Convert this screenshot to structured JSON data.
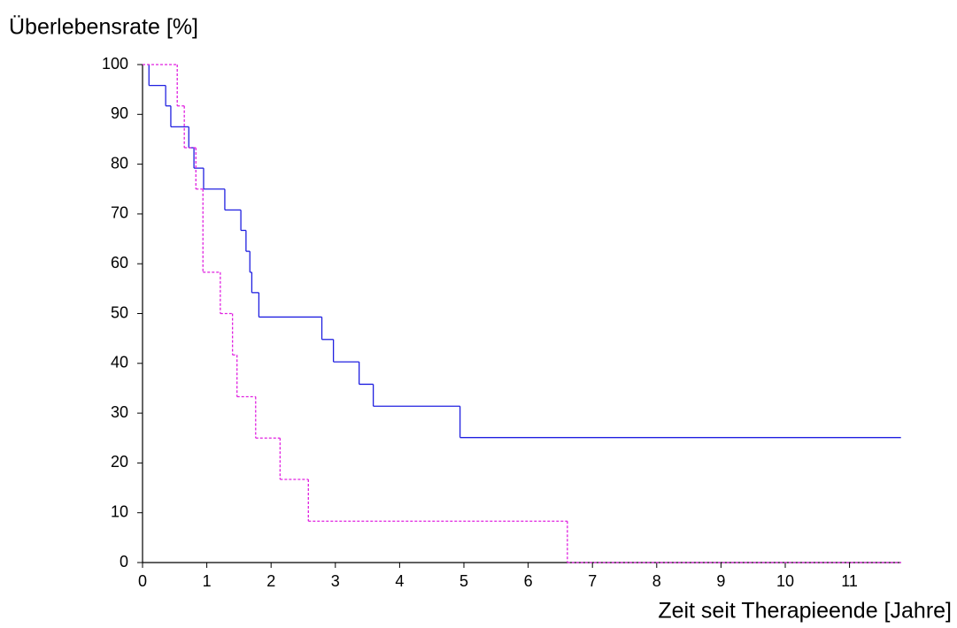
{
  "chart_data": {
    "type": "step",
    "y_label": "Überlebensrate [%]",
    "x_label": "Zeit seit Therapieende [Jahre]",
    "xlim": [
      0,
      11.8
    ],
    "ylim": [
      0,
      100
    ],
    "xticks": [
      0,
      1,
      2,
      3,
      4,
      5,
      6,
      7,
      8,
      9,
      10,
      11
    ],
    "yticks": [
      0,
      10,
      20,
      30,
      40,
      50,
      60,
      70,
      80,
      90,
      100
    ],
    "series": [
      {
        "color": "#2020e0",
        "dash": false,
        "x": [
          0.1,
          0.1,
          0.36,
          0.44,
          0.72,
          0.8,
          0.95,
          1.28,
          1.53,
          1.61,
          1.67,
          1.7,
          1.81,
          2.79,
          2.97,
          3.37,
          3.59,
          4.94,
          11.8
        ],
        "values": [
          100,
          95.8,
          91.7,
          87.5,
          83.3,
          79.2,
          75,
          70.8,
          66.7,
          62.5,
          58.3,
          54.2,
          49.3,
          44.8,
          40.3,
          35.8,
          31.4,
          25.1,
          25.1
        ]
      },
      {
        "color": "#e020e0",
        "dash": true,
        "x": [
          0,
          0.54,
          0.65,
          0.83,
          0.94,
          1.21,
          1.4,
          1.47,
          1.76,
          2.14,
          2.58,
          6.61,
          11.8
        ],
        "values": [
          100,
          91.7,
          83.3,
          75,
          58.3,
          50,
          41.7,
          33.3,
          25,
          16.7,
          8.3,
          0,
          0
        ]
      }
    ]
  }
}
